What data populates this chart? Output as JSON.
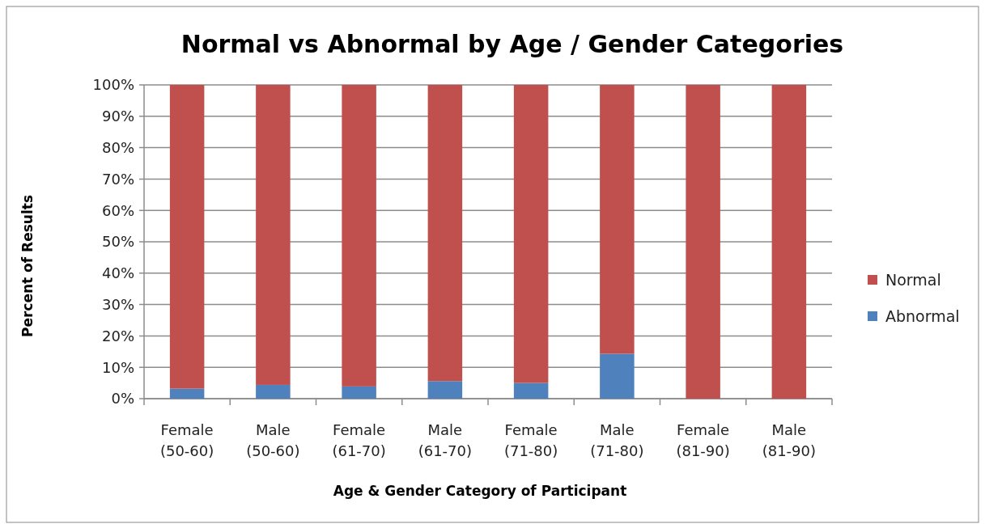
{
  "chart_data": {
    "type": "bar",
    "title": "Normal vs Abnormal by Age / Gender Categories",
    "xlabel": "Age & Gender Category of Participant",
    "ylabel": "Percent  of Results",
    "categories": [
      "Female\n(50-60)",
      "Male\n(50-60)",
      "Female\n(61-70)",
      "Male\n(61-70)",
      "Female\n(71-80)",
      "Male\n(71-80)",
      "Female\n(81-90)",
      "Male\n(81-90)"
    ],
    "stacked": true,
    "series": [
      {
        "name": "Abnormal",
        "color": "#4f81bd",
        "values": [
          3.2,
          4.4,
          3.9,
          5.6,
          5.0,
          14.3,
          0,
          0
        ]
      },
      {
        "name": "Normal",
        "color": "#c0504d",
        "values": [
          96.8,
          95.6,
          96.1,
          94.4,
          95.0,
          85.7,
          100,
          100
        ]
      }
    ],
    "ylim": [
      0,
      100
    ],
    "yticks": [
      {
        "value": 0,
        "label": "0%"
      },
      {
        "value": 10,
        "label": "10%"
      },
      {
        "value": 20,
        "label": "20%"
      },
      {
        "value": 30,
        "label": "30%"
      },
      {
        "value": 40,
        "label": "40%"
      },
      {
        "value": 50,
        "label": "50%"
      },
      {
        "value": 60,
        "label": "60%"
      },
      {
        "value": 70,
        "label": "70%"
      },
      {
        "value": 80,
        "label": "80%"
      },
      {
        "value": 90,
        "label": "90%"
      },
      {
        "value": 100,
        "label": "100%"
      }
    ],
    "grid": "y",
    "legend": "right"
  }
}
